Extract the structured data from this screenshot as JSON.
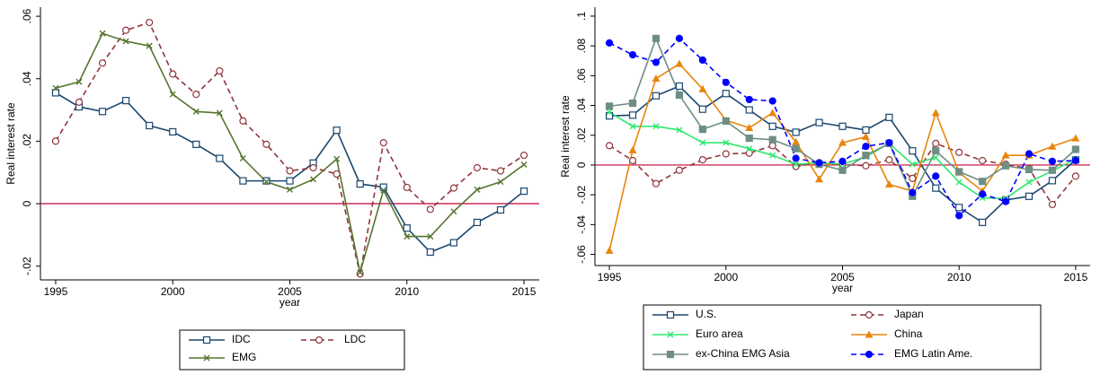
{
  "chart_data": [
    {
      "type": "line",
      "ylabel": "Real interest rate",
      "xlabel": "year",
      "x": [
        1995,
        1996,
        1997,
        1998,
        1999,
        2000,
        2001,
        2002,
        2003,
        2004,
        2005,
        2006,
        2007,
        2008,
        2009,
        2010,
        2011,
        2012,
        2013,
        2014,
        2015
      ],
      "xlim": [
        1994.35,
        2015.65
      ],
      "xticks": [
        1995,
        2000,
        2005,
        2010,
        2015
      ],
      "ylim": [
        -0.0244,
        0.0629
      ],
      "yticks": [
        {
          "value": -0.02,
          "label": "-.02"
        },
        0,
        {
          "value": 0.02,
          "label": ".02"
        },
        {
          "value": 0.04,
          "label": ".04"
        },
        {
          "value": 0.06,
          "label": ".06"
        }
      ],
      "refline": 0,
      "refline_color": "#c10534",
      "series": [
        {
          "name": "IDC",
          "color": "#1a476f",
          "marker": "square-hollow",
          "dashed": false,
          "values": [
            0.0355,
            0.031,
            0.0295,
            0.033,
            0.025,
            0.023,
            0.019,
            0.0145,
            0.0073,
            0.0073,
            0.0073,
            0.013,
            0.0235,
            0.0063,
            0.0053,
            -0.0078,
            -0.0155,
            -0.0125,
            -0.006,
            -0.002,
            0.004
          ]
        },
        {
          "name": "LDC",
          "color": "#90353b",
          "marker": "circle-hollow",
          "dashed": true,
          "values": [
            0.02,
            0.0325,
            0.045,
            0.0555,
            0.058,
            0.0415,
            0.035,
            0.0425,
            0.0265,
            0.019,
            0.0105,
            0.0115,
            0.0095,
            -0.0225,
            0.0195,
            0.0052,
            -0.0018,
            0.005,
            0.0115,
            0.0105,
            0.0155
          ]
        },
        {
          "name": "EMG",
          "color": "#55752f",
          "marker": "x",
          "dashed": false,
          "values": [
            0.037,
            0.039,
            0.0545,
            0.052,
            0.0505,
            0.035,
            0.0295,
            0.029,
            0.0145,
            0.007,
            0.0045,
            0.0078,
            0.0143,
            -0.022,
            0.0043,
            -0.0105,
            -0.0105,
            -0.0025,
            0.0045,
            0.007,
            0.0125
          ]
        }
      ]
    },
    {
      "type": "line",
      "ylabel": "Real interest rate",
      "xlabel": "year",
      "x": [
        1995,
        1996,
        1997,
        1998,
        1999,
        2000,
        2001,
        2002,
        2003,
        2004,
        2005,
        2006,
        2007,
        2008,
        2009,
        2010,
        2011,
        2012,
        2013,
        2014,
        2015
      ],
      "xlim": [
        1994.38,
        2015.62
      ],
      "xticks": [
        1995,
        2000,
        2005,
        2010,
        2015
      ],
      "ylim": [
        -0.0675,
        0.106
      ],
      "yticks": [
        {
          "value": -0.06,
          "label": "-.06"
        },
        {
          "value": -0.04,
          "label": "-.04"
        },
        {
          "value": -0.02,
          "label": "-.02"
        },
        0,
        {
          "value": 0.02,
          "label": ".02"
        },
        {
          "value": 0.04,
          "label": ".04"
        },
        {
          "value": 0.06,
          "label": ".06"
        },
        {
          "value": 0.08,
          "label": ".08"
        },
        {
          "value": 0.1,
          "label": ".1"
        }
      ],
      "refline": 0,
      "refline_color": "#c10534",
      "series": [
        {
          "name": "U.S.",
          "color": "#1a476f",
          "marker": "square-hollow",
          "dashed": false,
          "values": [
            0.033,
            0.0335,
            0.0465,
            0.053,
            0.0375,
            0.048,
            0.037,
            0.026,
            0.022,
            0.0285,
            0.026,
            0.0235,
            0.032,
            0.0095,
            -0.0155,
            -0.0285,
            -0.0385,
            -0.0235,
            -0.021,
            -0.0105,
            0.0035
          ]
        },
        {
          "name": "Japan",
          "color": "#90353b",
          "marker": "circle-hollow",
          "dashed": true,
          "values": [
            0.013,
            0.003,
            -0.0125,
            -0.0035,
            0.0035,
            0.0075,
            0.008,
            0.013,
            -0.001,
            0.0015,
            0.0005,
            -0.0005,
            0.0035,
            -0.009,
            0.0145,
            0.0085,
            0.003,
            0.0005,
            -0.0025,
            -0.0265,
            -0.0075
          ]
        },
        {
          "name": "Euro area",
          "color": "#2ee86f",
          "marker": "x",
          "dashed": false,
          "values": [
            0.0355,
            0.026,
            0.026,
            0.0235,
            0.015,
            0.015,
            0.011,
            0.0065,
            0.0005,
            0.0015,
            0.0005,
            0.0055,
            0.0145,
            0.0005,
            0.005,
            -0.0115,
            -0.022,
            -0.0225,
            -0.0115,
            -0.004,
            0.004
          ]
        },
        {
          "name": "China",
          "color": "#e8850c",
          "marker": "triangle",
          "dashed": false,
          "values": [
            -0.0575,
            0.01,
            0.058,
            0.068,
            0.051,
            0.03,
            0.025,
            0.035,
            0.0155,
            -0.0095,
            0.015,
            0.019,
            -0.013,
            -0.0175,
            0.035,
            -0.005,
            -0.0175,
            0.0065,
            0.0065,
            0.0125,
            0.018
          ]
        },
        {
          "name": "ex-China EMG Asia",
          "color": "#6e8e84",
          "marker": "square",
          "dashed": false,
          "values": [
            0.0395,
            0.0415,
            0.085,
            0.047,
            0.024,
            0.0295,
            0.018,
            0.017,
            0.011,
            0.0005,
            -0.0035,
            0.0065,
            0.0145,
            -0.021,
            0.0095,
            -0.0045,
            -0.011,
            -0.0005,
            -0.003,
            -0.0035,
            0.0105
          ]
        },
        {
          "name": "EMG Latin Ame.",
          "color": "#0000ff",
          "marker": "circle",
          "dashed": true,
          "values": [
            0.082,
            0.074,
            0.069,
            0.085,
            0.0705,
            0.0555,
            0.044,
            0.043,
            0.0045,
            0.0015,
            0.0025,
            0.0125,
            0.015,
            -0.0185,
            -0.0075,
            -0.034,
            -0.0195,
            -0.0245,
            0.0075,
            0.0025,
            0.003
          ]
        }
      ]
    }
  ]
}
